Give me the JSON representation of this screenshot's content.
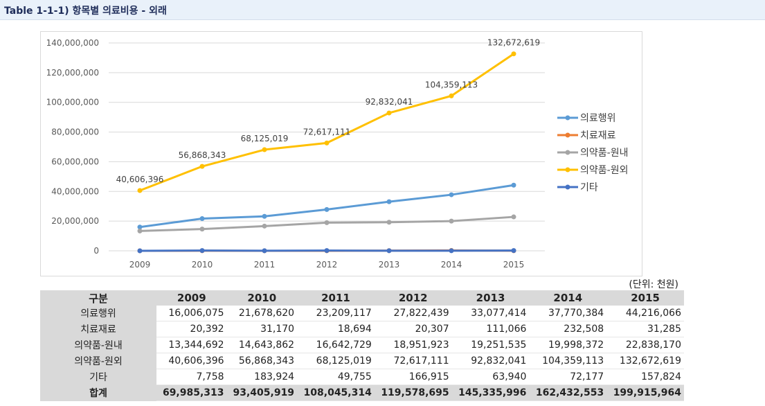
{
  "header": {
    "title": "Table 1-1-1) 항목별 의료비용 - 외래"
  },
  "unit_note": "(단위: 천원)",
  "chart_data": {
    "type": "line",
    "categories": [
      "2009",
      "2010",
      "2011",
      "2012",
      "2013",
      "2014",
      "2015"
    ],
    "ylim": [
      0,
      140000000
    ],
    "yticks": [
      "0",
      "20,000,000",
      "40,000,000",
      "60,000,000",
      "80,000,000",
      "100,000,000",
      "120,000,000",
      "140,000,000"
    ],
    "ytick_values": [
      0,
      20000000,
      40000000,
      60000000,
      80000000,
      100000000,
      120000000,
      140000000
    ],
    "grid": true,
    "legend_position": "right",
    "series": [
      {
        "name": "의료행위",
        "color": "#5b9bd5",
        "values": [
          16006075,
          21678620,
          23209117,
          27822439,
          33077414,
          37770384,
          44216066
        ]
      },
      {
        "name": "치료재료",
        "color": "#ed7d31",
        "values": [
          20392,
          31170,
          18694,
          20307,
          111066,
          232508,
          31285
        ]
      },
      {
        "name": "의약품-원내",
        "color": "#a5a5a5",
        "values": [
          13344692,
          14643862,
          16642729,
          18951923,
          19251535,
          19998372,
          22838170
        ]
      },
      {
        "name": "의약품-원외",
        "color": "#ffc000",
        "values": [
          40606396,
          56868343,
          68125019,
          72617111,
          92832041,
          104359113,
          132672619
        ],
        "data_labels": [
          "40,606,396",
          "56,868,343",
          "68,125,019",
          "72,617,111",
          "92,832,041",
          "104,359,113",
          "132,672,619"
        ]
      },
      {
        "name": "기타",
        "color": "#4472c4",
        "values": [
          7758,
          183924,
          49755,
          166915,
          63940,
          72177,
          157824
        ]
      }
    ]
  },
  "table": {
    "headers": [
      "구분",
      "2009",
      "2010",
      "2011",
      "2012",
      "2013",
      "2014",
      "2015"
    ],
    "rows": [
      {
        "label": "의료행위",
        "values": [
          "16,006,075",
          "21,678,620",
          "23,209,117",
          "27,822,439",
          "33,077,414",
          "37,770,384",
          "44,216,066"
        ]
      },
      {
        "label": "치료재료",
        "values": [
          "20,392",
          "31,170",
          "18,694",
          "20,307",
          "111,066",
          "232,508",
          "31,285"
        ]
      },
      {
        "label": "의약품-원내",
        "values": [
          "13,344,692",
          "14,643,862",
          "16,642,729",
          "18,951,923",
          "19,251,535",
          "19,998,372",
          "22,838,170"
        ]
      },
      {
        "label": "의약품-원외",
        "values": [
          "40,606,396",
          "56,868,343",
          "68,125,019",
          "72,617,111",
          "92,832,041",
          "104,359,113",
          "132,672,619"
        ]
      },
      {
        "label": "기타",
        "values": [
          "7,758",
          "183,924",
          "49,755",
          "166,915",
          "63,940",
          "72,177",
          "157,824"
        ]
      }
    ],
    "total": {
      "label": "합계",
      "values": [
        "69,985,313",
        "93,405,919",
        "108,045,314",
        "119,578,695",
        "145,335,996",
        "162,432,553",
        "199,915,964"
      ]
    }
  }
}
